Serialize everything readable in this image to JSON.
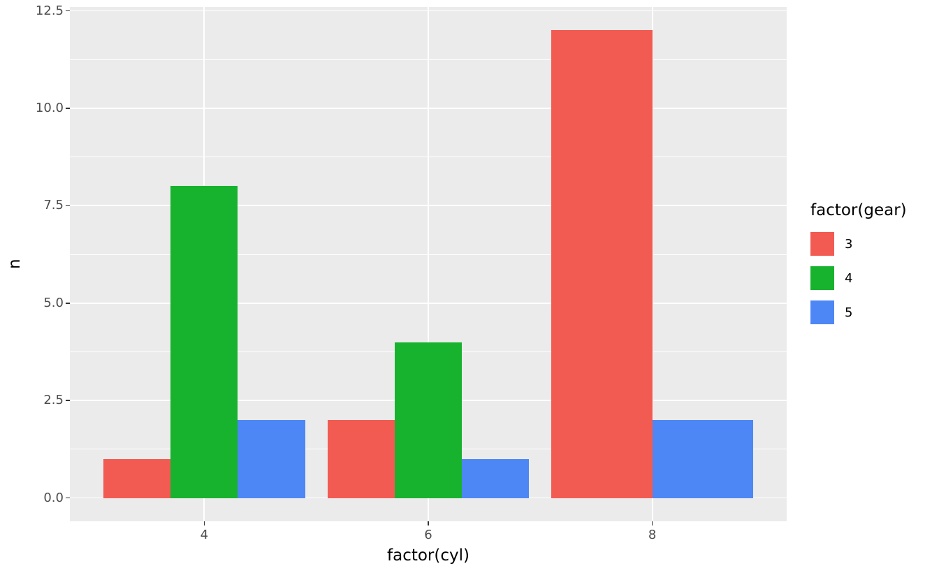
{
  "chart_data": {
    "type": "bar",
    "position": "dodge",
    "title": "",
    "xlabel": "factor(cyl)",
    "ylabel": "n",
    "legend_title": "factor(gear)",
    "legend_position": "right",
    "categories": [
      "4",
      "6",
      "8"
    ],
    "series": [
      {
        "name": "3",
        "color": "#F25B52",
        "values": [
          1,
          2,
          12
        ]
      },
      {
        "name": "4",
        "color": "#17B32E",
        "values": [
          8,
          4,
          0
        ]
      },
      {
        "name": "5",
        "color": "#4D87F5",
        "values": [
          2,
          1,
          2
        ]
      }
    ],
    "y_tick_labels": [
      "0.0",
      "2.5",
      "5.0",
      "7.5",
      "10.0",
      "12.5"
    ],
    "y_tick_values": [
      0,
      2.5,
      5,
      7.5,
      10,
      12.5
    ],
    "y_minor_values": [
      1.25,
      3.75,
      6.25,
      8.75,
      11.25
    ],
    "ylim": [
      -0.6,
      12.6
    ],
    "grid": true,
    "panel_bg": "#EBEBEB",
    "grid_color": "#FFFFFF",
    "tick_color": "#333333",
    "tick_label_color": "#4D4D4D",
    "bar_slot_width": 0.9
  }
}
